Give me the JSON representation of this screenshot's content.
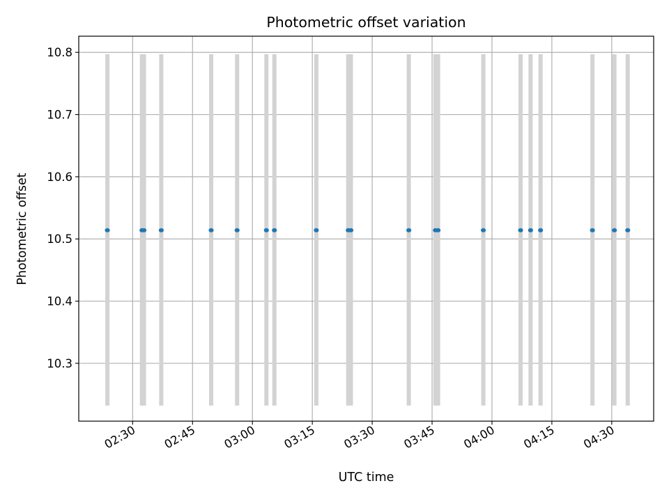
{
  "chart_data": {
    "type": "scatter",
    "title": "Photometric offset variation",
    "xlabel": "UTC time",
    "ylabel": "Photometric offset",
    "x_axis_kind": "time",
    "xlim": [
      "02:16:30",
      "04:40:30"
    ],
    "ylim": [
      10.207,
      10.826
    ],
    "x_ticks": [
      "02:30",
      "02:45",
      "03:00",
      "03:15",
      "03:30",
      "03:45",
      "04:00",
      "04:15",
      "04:30"
    ],
    "y_ticks": [
      10.3,
      10.4,
      10.5,
      10.6,
      10.7,
      10.8
    ],
    "y_tick_labels": [
      "10.3",
      "10.4",
      "10.5",
      "10.6",
      "10.7",
      "10.8"
    ],
    "grid": true,
    "x_tick_label_rotation_deg": 30,
    "series": [
      {
        "marker_color": "#1f77b4",
        "errorbar_color": "#d3d3d3",
        "error_low": 10.232,
        "error_high": 10.797,
        "points": [
          {
            "x": "02:23:40",
            "y": 10.514
          },
          {
            "x": "02:32:20",
            "y": 10.514
          },
          {
            "x": "02:32:50",
            "y": 10.514
          },
          {
            "x": "02:37:10",
            "y": 10.514
          },
          {
            "x": "02:49:40",
            "y": 10.514
          },
          {
            "x": "02:56:10",
            "y": 10.514
          },
          {
            "x": "03:03:30",
            "y": 10.514
          },
          {
            "x": "03:05:30",
            "y": 10.514
          },
          {
            "x": "03:16:00",
            "y": 10.514
          },
          {
            "x": "03:24:00",
            "y": 10.514
          },
          {
            "x": "03:24:40",
            "y": 10.514
          },
          {
            "x": "03:39:10",
            "y": 10.514
          },
          {
            "x": "03:45:50",
            "y": 10.514
          },
          {
            "x": "03:46:30",
            "y": 10.514
          },
          {
            "x": "03:57:50",
            "y": 10.514
          },
          {
            "x": "04:07:10",
            "y": 10.514
          },
          {
            "x": "04:09:40",
            "y": 10.514
          },
          {
            "x": "04:12:10",
            "y": 10.514
          },
          {
            "x": "04:25:10",
            "y": 10.514
          },
          {
            "x": "04:30:40",
            "y": 10.514
          },
          {
            "x": "04:34:00",
            "y": 10.514
          }
        ]
      }
    ]
  }
}
